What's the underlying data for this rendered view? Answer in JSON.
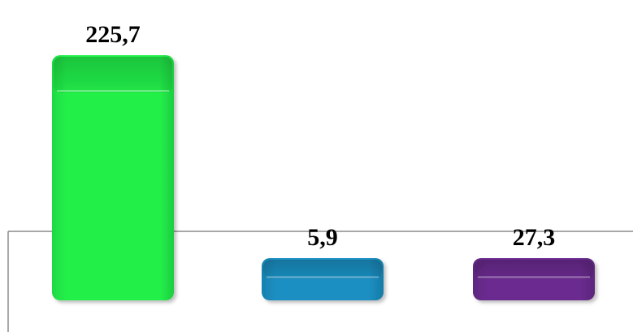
{
  "chart_data": {
    "type": "bar",
    "title": "",
    "xlabel": "",
    "ylabel": "",
    "categories": [
      "",
      "",
      ""
    ],
    "values": [
      225.7,
      5.9,
      27.3
    ],
    "value_labels": [
      "225,7",
      "5,9",
      "27,3"
    ],
    "colors": {
      "bar_1": "#22f04a",
      "bar_2": "#1b8fc2",
      "bar_3": "#6a2b8f"
    },
    "grid": false,
    "legend": "none"
  }
}
